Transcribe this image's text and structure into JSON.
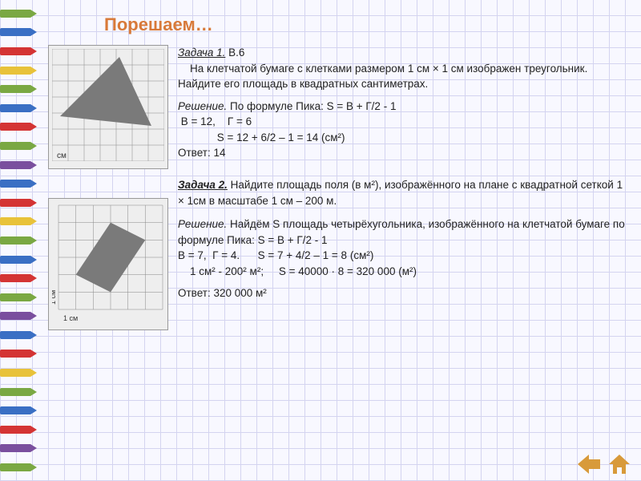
{
  "title": "Порешаем…",
  "pencil_colors": [
    "#7aa843",
    "#3a6fc4",
    "#d43434",
    "#e8c23a",
    "#7aa843",
    "#3a6fc4",
    "#d43434",
    "#7aa843",
    "#7a4f9e",
    "#3a6fc4",
    "#d43434",
    "#e8c23a",
    "#7aa843",
    "#3a6fc4",
    "#d43434",
    "#7aa843",
    "#7a4f9e",
    "#3a6fc4",
    "#d43434",
    "#e8c23a",
    "#7aa843",
    "#3a6fc4",
    "#d43434",
    "#7a4f9e",
    "#7aa843"
  ],
  "task1": {
    "heading": "Задача 1.",
    "code": " В.6",
    "p1": "    На клетчатой бумаге с клетками размером 1 см × 1 см изображен треугольник.  Найдите его площадь в квадратных сантиметрах.",
    "sol_label": "Решение.",
    "sol1": " По формуле Пика: S = В + Г/2 - 1",
    "sol2": " В = 12,    Г = 6",
    "sol3": "             S = 12 + 6/2 – 1 = 14 (см²)",
    "ans": "Ответ: 14",
    "figure": {
      "type": "triangle",
      "grid_n": 7,
      "grid_color": "#888",
      "fill": "#7a7a7a",
      "points": [
        [
          0.5,
          4.2
        ],
        [
          4.2,
          0.5
        ],
        [
          6.2,
          4.8
        ]
      ],
      "label": "см"
    }
  },
  "task2": {
    "heading": "Задача 2.",
    "p1": " Найдите площадь поля (в м²), изображённого на плане с квадратной сеткой  1 × 1см в масштабе 1 см – 200 м.",
    "sol_label": "Решение.",
    "sol1": " Найдём S площадь четырёхугольника, изображённого на клетчатой бумаге по формуле Пика:  S = В + Г/2 - 1",
    "sol2": "В = 7,  Г = 4.      S = 7 + 4/2 – 1 = 8 (см²)",
    "sol3": "    1 см² - 200² м²;     S = 40000 · 8 = 320 000 (м²)",
    "ans": "Ответ: 320 000 м²",
    "figure": {
      "type": "rhombus",
      "grid_n": 6,
      "grid_color": "#888",
      "fill": "#7a7a7a",
      "points": [
        [
          1,
          4
        ],
        [
          3,
          5
        ],
        [
          5,
          2
        ],
        [
          3,
          1
        ]
      ],
      "label_x": "1 см",
      "label_y": "1 см"
    }
  },
  "nav": {
    "back_color": "#d89a3a",
    "home_color": "#d89a3a"
  }
}
